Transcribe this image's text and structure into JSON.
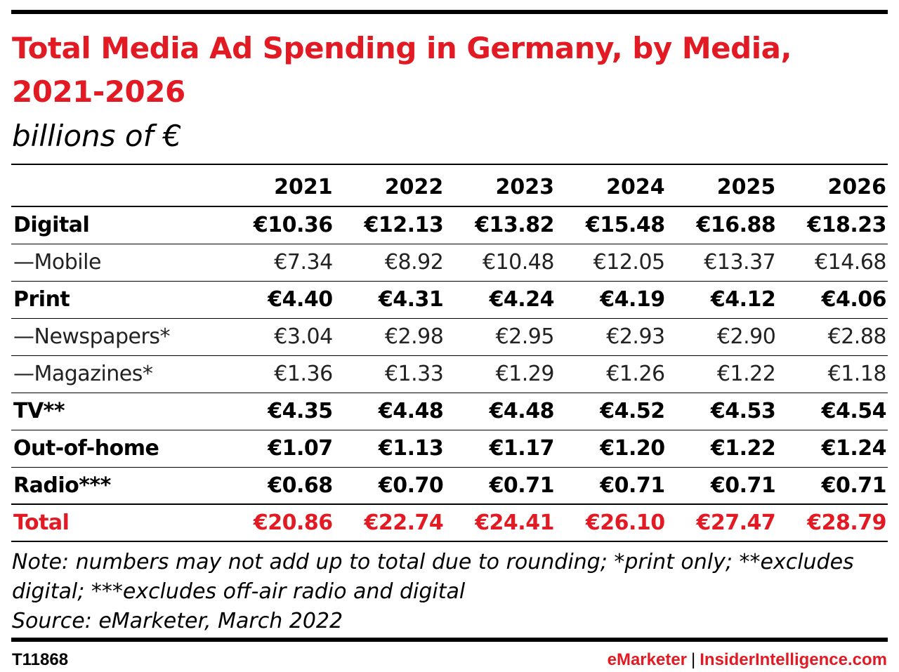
{
  "chart_data": {
    "type": "table",
    "title": "Total Media Ad Spending in Germany, by Media, 2021-2026",
    "subtitle": "billions of €",
    "columns": [
      "2021",
      "2022",
      "2023",
      "2024",
      "2025",
      "2026"
    ],
    "rows": [
      {
        "label": "Digital",
        "style": "bold",
        "values": [
          "€10.36",
          "€12.13",
          "€13.82",
          "€15.48",
          "€16.88",
          "€18.23"
        ]
      },
      {
        "label": "—Mobile",
        "style": "sub",
        "values": [
          "€7.34",
          "€8.92",
          "€10.48",
          "€12.05",
          "€13.37",
          "€14.68"
        ]
      },
      {
        "label": "Print",
        "style": "bold",
        "values": [
          "€4.40",
          "€4.31",
          "€4.24",
          "€4.19",
          "€4.12",
          "€4.06"
        ]
      },
      {
        "label": "—Newspapers*",
        "style": "sub",
        "values": [
          "€3.04",
          "€2.98",
          "€2.95",
          "€2.93",
          "€2.90",
          "€2.88"
        ]
      },
      {
        "label": "—Magazines*",
        "style": "sub",
        "values": [
          "€1.36",
          "€1.33",
          "€1.29",
          "€1.26",
          "€1.22",
          "€1.18"
        ]
      },
      {
        "label": "TV**",
        "style": "bold",
        "values": [
          "€4.35",
          "€4.48",
          "€4.48",
          "€4.52",
          "€4.53",
          "€4.54"
        ]
      },
      {
        "label": "Out-of-home",
        "style": "bold",
        "values": [
          "€1.07",
          "€1.13",
          "€1.17",
          "€1.20",
          "€1.22",
          "€1.24"
        ]
      },
      {
        "label": "Radio***",
        "style": "bold",
        "values": [
          "€0.68",
          "€0.70",
          "€0.71",
          "€0.71",
          "€0.71",
          "€0.71"
        ]
      },
      {
        "label": "Total",
        "style": "total",
        "values": [
          "€20.86",
          "€22.74",
          "€24.41",
          "€26.10",
          "€27.47",
          "€28.79"
        ]
      }
    ]
  },
  "footer": {
    "note": "Note: numbers may not add up to total due to rounding; *print only; **excludes digital; ***excludes off-air radio and digital",
    "source": "Source: eMarketer, March 2022",
    "chart_id": "T11868",
    "brand_primary": "eMarketer",
    "brand_separator": "|",
    "brand_secondary": "InsiderIntelligence.com"
  },
  "colors": {
    "accent": "#e21a23",
    "text": "#000000"
  }
}
